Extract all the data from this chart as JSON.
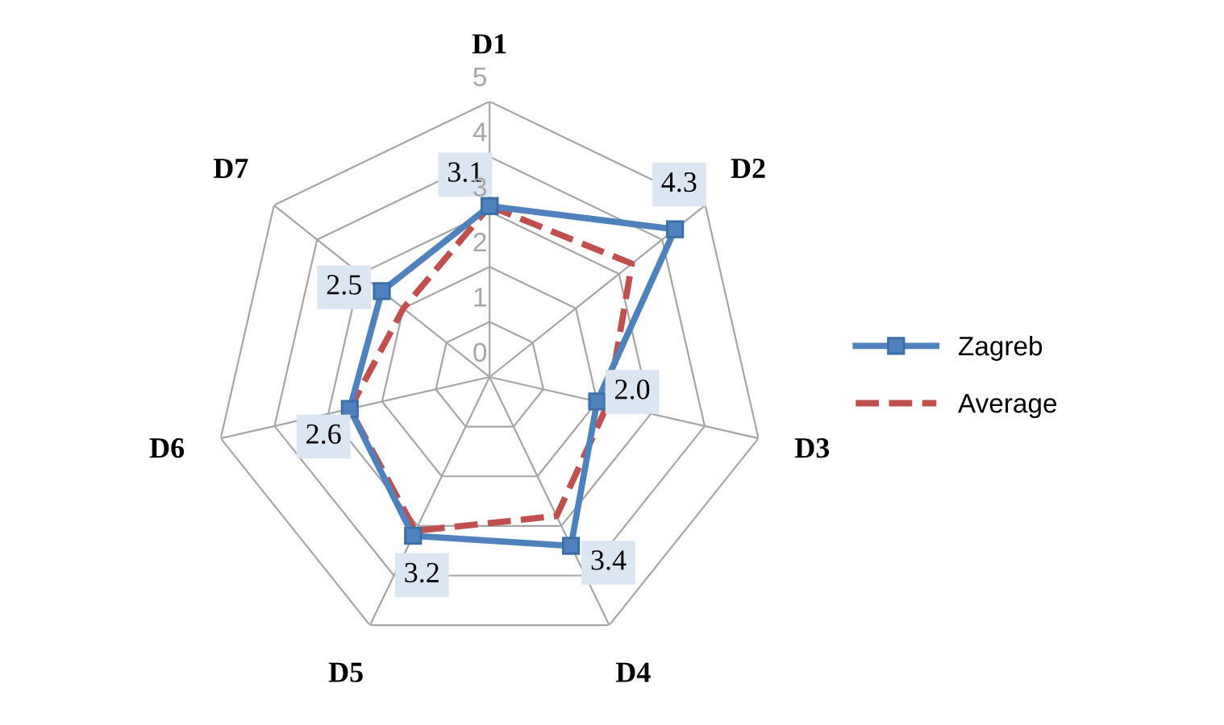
{
  "chart_data": {
    "type": "radar",
    "categories": [
      "D1",
      "D2",
      "D3",
      "D4",
      "D5",
      "D6",
      "D7"
    ],
    "series": [
      {
        "name": "Zagreb",
        "color": "#4f81bd",
        "values": [
          3.1,
          4.3,
          2.0,
          3.4,
          3.2,
          2.6,
          2.5
        ],
        "marker": "square",
        "line_style": "solid",
        "value_labels": [
          "3.1",
          "4.3",
          "2.0",
          "3.4",
          "3.2",
          "2.6",
          "2.5"
        ]
      },
      {
        "name": "Average",
        "color": "#c0504d",
        "values": [
          3.1,
          3.3,
          2.2,
          2.8,
          3.1,
          2.6,
          2.0
        ],
        "marker": "none",
        "line_style": "dashed"
      }
    ],
    "ylim": [
      0,
      5
    ],
    "yticks": [
      0,
      1,
      2,
      3,
      4,
      5
    ],
    "grid": true,
    "legend": "right"
  }
}
